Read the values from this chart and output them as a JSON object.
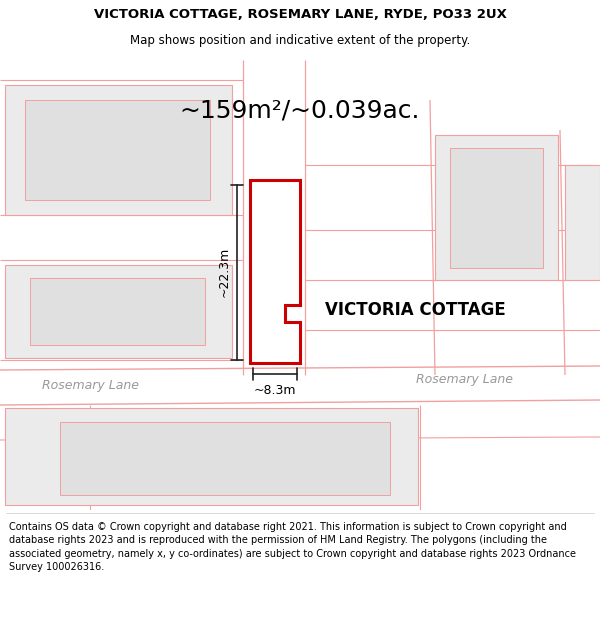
{
  "title_line1": "VICTORIA COTTAGE, ROSEMARY LANE, RYDE, PO33 2UX",
  "title_line2": "Map shows position and indicative extent of the property.",
  "area_label": "~159m²/~0.039ac.",
  "property_label": "VICTORIA COTTAGE",
  "dim_height": "~22.3m",
  "dim_width": "~8.3m",
  "road_label_left": "Rosemary Lane",
  "road_label_right": "Rosemary Lane",
  "footer_text": "Contains OS data © Crown copyright and database right 2021. This information is subject to Crown copyright and database rights 2023 and is reproduced with the permission of HM Land Registry. The polygons (including the associated geometry, namely x, y co-ordinates) are subject to Crown copyright and database rights 2023 Ordnance Survey 100026316.",
  "bg_color": "#ffffff",
  "road_line_color": "#f0a0a0",
  "highlight_color": "#cc0000",
  "highlight_fill": "#ffffff",
  "dim_line_color": "#222222",
  "building_fill": "#ebebeb",
  "building_inner_fill": "#e0e0e0",
  "road_text_color": "#999999",
  "title_fontsize": 9.5,
  "subtitle_fontsize": 8.5,
  "area_fontsize": 18,
  "property_fontsize": 12,
  "dim_fontsize": 9,
  "road_fontsize": 9,
  "footer_fontsize": 7.0
}
